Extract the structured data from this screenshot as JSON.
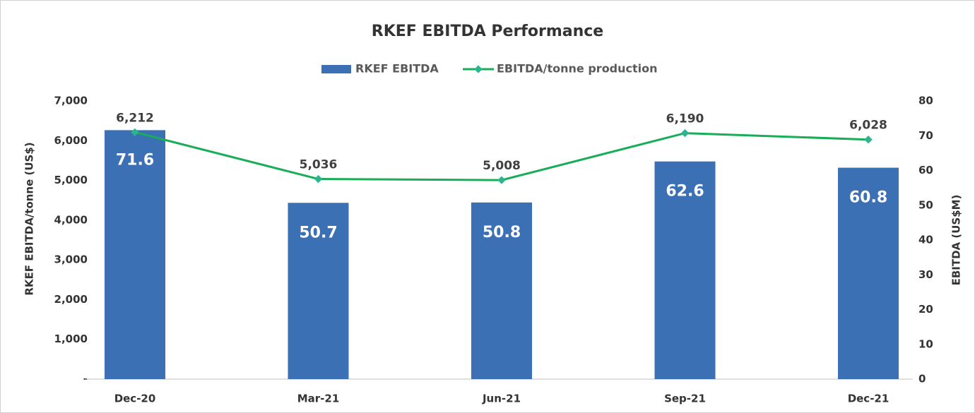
{
  "chart_data": {
    "type": "bar-line",
    "title": "RKEF EBITDA Performance",
    "categories": [
      "Dec-20",
      "Mar-21",
      "Jun-21",
      "Sep-21",
      "Dec-21"
    ],
    "series": [
      {
        "name": "RKEF EBITDA",
        "type": "bar",
        "axis": "y2",
        "color": "#3b70b4",
        "values": [
          71.6,
          50.7,
          50.8,
          62.6,
          60.8
        ]
      },
      {
        "name": "EBITDA/tonne production",
        "type": "line",
        "axis": "y",
        "color": "#1aad57",
        "marker_color": "#2bb58f",
        "values": [
          6212,
          5036,
          5008,
          6190,
          6028
        ],
        "value_labels": [
          "6,212",
          "5,036",
          "5,008",
          "6,190",
          "6,028"
        ]
      }
    ],
    "ylabel": "RKEF EBITDA/tonne  (US$)",
    "y2label": "EBITDA (US$M)",
    "ylim": [
      0,
      7000
    ],
    "yticks": [
      {
        "value": 0,
        "label": "-"
      },
      {
        "value": 1000,
        "label": "1,000"
      },
      {
        "value": 2000,
        "label": "2,000"
      },
      {
        "value": 3000,
        "label": "3,000"
      },
      {
        "value": 4000,
        "label": "4,000"
      },
      {
        "value": 5000,
        "label": "5,000"
      },
      {
        "value": 6000,
        "label": "6,000"
      },
      {
        "value": 7000,
        "label": "7,000"
      }
    ],
    "y2lim": [
      0,
      80
    ],
    "y2ticks": [
      0,
      10,
      20,
      30,
      40,
      50,
      60,
      70,
      80
    ],
    "legend": "top",
    "grid": false
  }
}
